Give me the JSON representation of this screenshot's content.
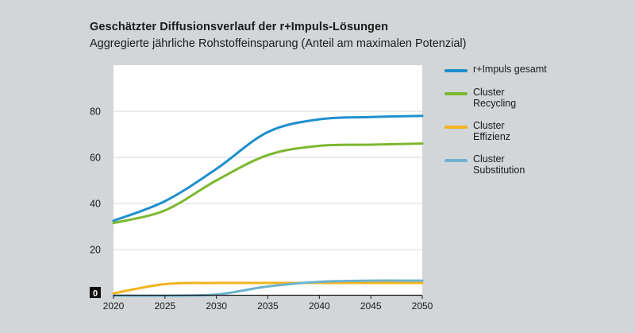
{
  "title": "Geschätzter Diffusionsverlauf der r+Impuls-Lösungen",
  "subtitle": "Aggregierte jährliche Rohstoffeinsparung (Anteil am maximalen Potenzial)",
  "chart_data": {
    "type": "line",
    "title": "Geschätzter Diffusionsverlauf der r+Impuls-Lösungen",
    "subtitle": "Aggregierte jährliche Rohstoffeinsparung (Anteil am maximalen Potenzial)",
    "xlabel": "",
    "ylabel": "",
    "x": [
      2020,
      2025,
      2030,
      2035,
      2040,
      2045,
      2050
    ],
    "xticks": [
      "2020",
      "2025",
      "2030",
      "2035",
      "2040",
      "2045",
      "2050"
    ],
    "yticks": [
      "0",
      "20",
      "40",
      "60",
      "80"
    ],
    "xlim": [
      2020,
      2050
    ],
    "ylim": [
      0,
      100
    ],
    "grid": true,
    "legend_position": "right",
    "series": [
      {
        "name": "r+Impuls gesamt",
        "color": "#1f8fce",
        "values": [
          32.5,
          41,
          55,
          71,
          76.5,
          77.5,
          78
        ]
      },
      {
        "name": "Cluster Recycling",
        "color": "#7cb82f",
        "values": [
          31.5,
          37,
          50,
          61,
          65,
          65.5,
          66
        ]
      },
      {
        "name": "Cluster Effizienz",
        "color": "#f3b41f",
        "values": [
          1,
          5,
          5.5,
          5.5,
          5.5,
          5.5,
          5.5
        ]
      },
      {
        "name": "Cluster Substitution",
        "color": "#6db3cf",
        "values": [
          0,
          0,
          0.5,
          4,
          6,
          6.5,
          6.5
        ]
      }
    ]
  },
  "legend": [
    {
      "line1": "r+Impuls gesamt",
      "line2": "",
      "color": "#1f8fce"
    },
    {
      "line1": "Cluster",
      "line2": "Recycling",
      "color": "#7cb82f"
    },
    {
      "line1": "Cluster",
      "line2": "Effizienz",
      "color": "#f3b41f"
    },
    {
      "line1": "Cluster",
      "line2": "Substitution",
      "color": "#6db3cf"
    }
  ],
  "colors": {
    "background": "#d2d6d8",
    "plot_background": "#ffffff",
    "grid": "#d9d9d9",
    "axis": "#1a1a1a"
  }
}
